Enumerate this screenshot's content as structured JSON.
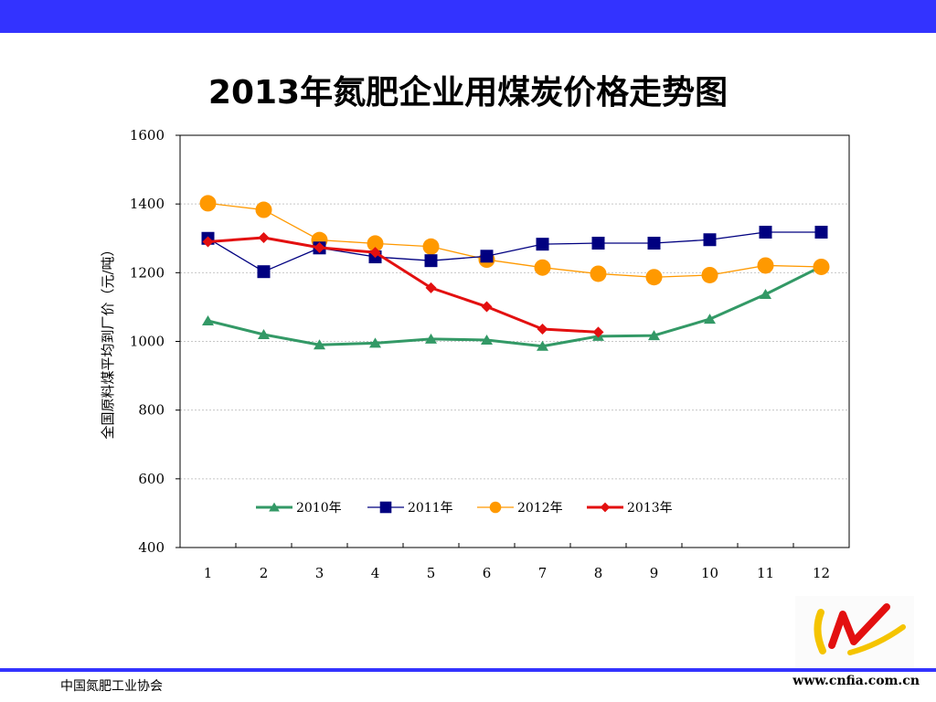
{
  "slide": {
    "title": "2013年氮肥企业用煤炭价格走势图",
    "footer_left": "中国氮肥工业协会",
    "footer_right": "www.cnfia.com.cn",
    "accent_color": "#3333ff"
  },
  "chart_data": {
    "type": "line",
    "title": "2013年氮肥企业用煤炭价格走势图",
    "xlabel": "",
    "ylabel": "全国原料煤平均到厂价（元/吨）",
    "categories": [
      "1",
      "2",
      "3",
      "4",
      "5",
      "6",
      "7",
      "8",
      "9",
      "10",
      "11",
      "12"
    ],
    "ylim": [
      400,
      1600
    ],
    "yticks": [
      400,
      600,
      800,
      1000,
      1200,
      1400,
      1600
    ],
    "grid": true,
    "legend_position": "bottom-inside",
    "series": [
      {
        "name": "2010年",
        "color": "#339966",
        "marker": "triangle",
        "values": [
          1060,
          1020,
          990,
          995,
          1007,
          1004,
          986,
          1015,
          1017,
          1065,
          1137,
          1218
        ]
      },
      {
        "name": "2011年",
        "color": "#000080",
        "marker": "square",
        "values": [
          1300,
          1203,
          1272,
          1246,
          1235,
          1248,
          1283,
          1286,
          1286,
          1296,
          1318,
          1318
        ]
      },
      {
        "name": "2012年",
        "color": "#ff9900",
        "marker": "circle",
        "values": [
          1402,
          1383,
          1295,
          1285,
          1276,
          1238,
          1215,
          1197,
          1187,
          1193,
          1221,
          1217
        ]
      },
      {
        "name": "2013年",
        "color": "#e31010",
        "marker": "diamond",
        "values": [
          1290,
          1302,
          1273,
          1259,
          1156,
          1101,
          1036,
          1027,
          null,
          null,
          null,
          null
        ]
      }
    ]
  }
}
